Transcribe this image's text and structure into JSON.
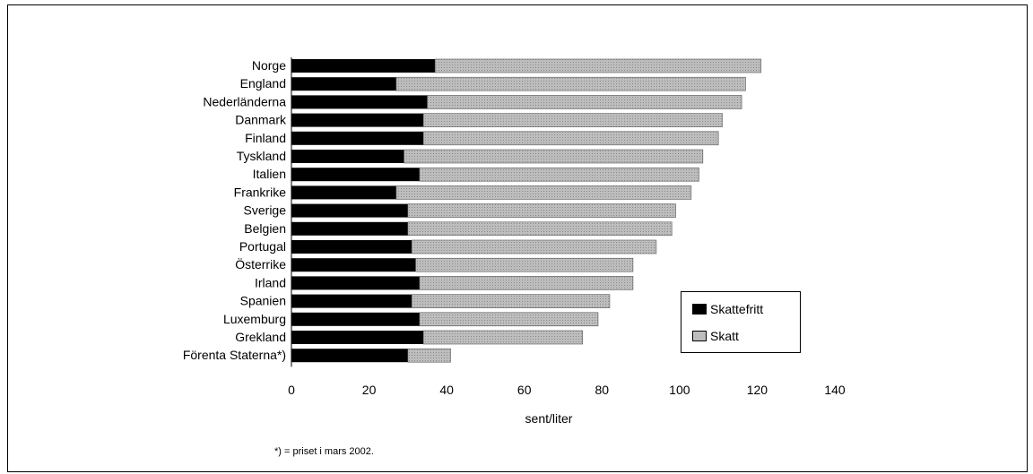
{
  "chart_data": {
    "type": "bar",
    "orientation": "horizontal",
    "stacked": true,
    "categories": [
      "Norge",
      "England",
      "Nederländerna",
      "Danmark",
      "Finland",
      "Tyskland",
      "Italien",
      "Frankrike",
      "Sverige",
      "Belgien",
      "Portugal",
      "Österrike",
      "Irland",
      "Spanien",
      "Luxemburg",
      "Grekland",
      "Förenta Staterna*)"
    ],
    "series": [
      {
        "name": "Skattefritt",
        "color": "#000000",
        "values": [
          37,
          27,
          35,
          34,
          34,
          29,
          33,
          27,
          30,
          30,
          31,
          32,
          33,
          31,
          33,
          34,
          30
        ]
      },
      {
        "name": "Skatt",
        "color": "#bdbdbd",
        "values": [
          84,
          90,
          81,
          77,
          76,
          77,
          72,
          76,
          69,
          68,
          63,
          56,
          55,
          51,
          46,
          41,
          11
        ]
      }
    ],
    "xlabel": "sent/liter",
    "xlim": [
      0,
      140
    ],
    "xticks": [
      "0",
      "20",
      "40",
      "60",
      "80",
      "100",
      "120",
      "140"
    ],
    "grid": false,
    "legend_position": "bottom-right",
    "footnote": "*) = priset i mars 2002."
  }
}
